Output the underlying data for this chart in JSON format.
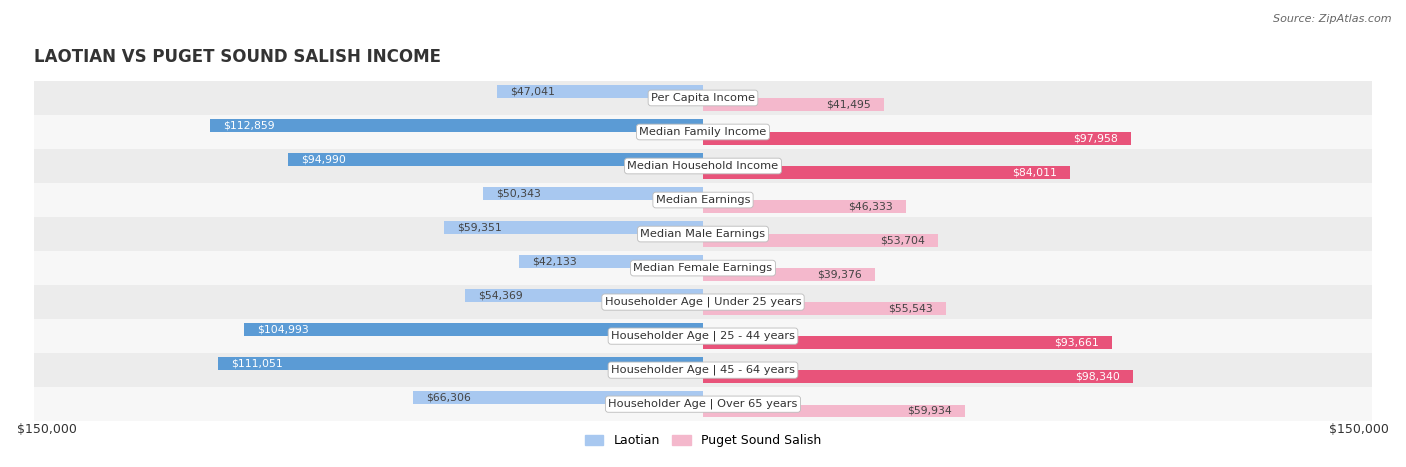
{
  "title": "LAOTIAN VS PUGET SOUND SALISH INCOME",
  "source": "Source: ZipAtlas.com",
  "categories": [
    "Per Capita Income",
    "Median Family Income",
    "Median Household Income",
    "Median Earnings",
    "Median Male Earnings",
    "Median Female Earnings",
    "Householder Age | Under 25 years",
    "Householder Age | 25 - 44 years",
    "Householder Age | 45 - 64 years",
    "Householder Age | Over 65 years"
  ],
  "laotian": [
    47041,
    112859,
    94990,
    50343,
    59351,
    42133,
    54369,
    104993,
    111051,
    66306
  ],
  "puget": [
    41495,
    97958,
    84011,
    46333,
    53704,
    39376,
    55543,
    93661,
    98340,
    59934
  ],
  "laotian_color_normal": "#a8c8f0",
  "laotian_color_bright": "#5b9bd5",
  "puget_color_normal": "#f4b8cc",
  "puget_color_bright": "#e8537a",
  "laotian_bright_indices": [
    1,
    2,
    7,
    8
  ],
  "puget_bright_indices": [
    1,
    2,
    7,
    8
  ],
  "max_val": 150000,
  "legend_laotian": "Laotian",
  "legend_puget": "Puget Sound Salish",
  "xlabel_left": "$150,000",
  "xlabel_right": "$150,000",
  "row_colors": [
    "#ececec",
    "#f7f7f7"
  ]
}
